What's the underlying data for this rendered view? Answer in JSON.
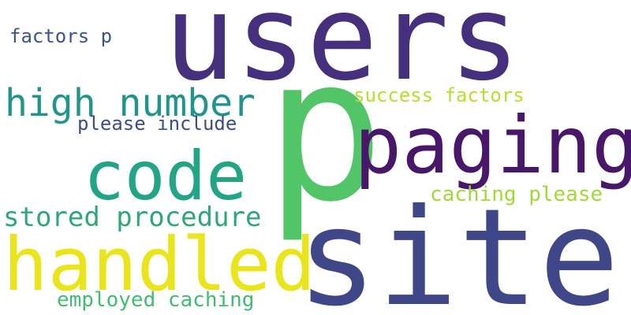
{
  "words": [
    {
      "text": "users",
      "color": "#46307e"
    },
    {
      "text": "p",
      "color": "#52c569"
    },
    {
      "text": "site",
      "color": "#3f4788"
    },
    {
      "text": "paging",
      "color": "#481769"
    },
    {
      "text": "handled",
      "color": "#e9e51a"
    },
    {
      "text": "code",
      "color": "#21a585"
    },
    {
      "text": "high number",
      "color": "#1f958b"
    },
    {
      "text": "stored procedure",
      "color": "#2ea878"
    },
    {
      "text": "please include",
      "color": "#3e4c8a"
    },
    {
      "text": "success factors",
      "color": "#b8de29"
    },
    {
      "text": "caching please",
      "color": "#a0da39"
    },
    {
      "text": "employed caching",
      "color": "#40bd72"
    },
    {
      "text": "factors p",
      "color": "#39558c"
    }
  ]
}
